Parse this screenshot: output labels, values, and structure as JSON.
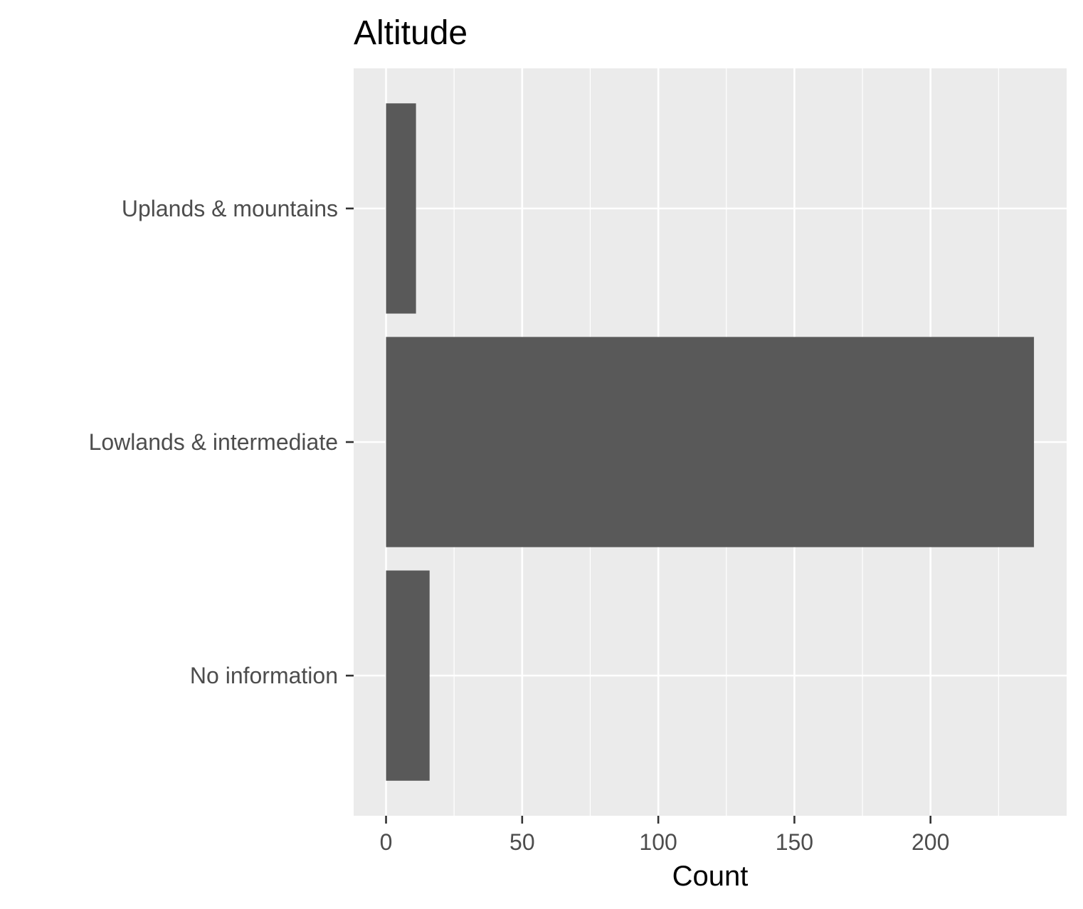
{
  "chart_data": {
    "type": "bar",
    "orientation": "horizontal",
    "title": "Altitude",
    "xlabel": "Count",
    "ylabel": "",
    "categories": [
      "Uplands & mountains",
      "Lowlands & intermediate",
      "No information"
    ],
    "values": [
      11,
      238,
      16
    ],
    "xlim": [
      -11.9,
      250
    ],
    "x_ticks": [
      0,
      50,
      100,
      150,
      200
    ],
    "x_tick_labels": [
      "0",
      "50",
      "100",
      "150",
      "200"
    ],
    "grid": true,
    "legend": "none",
    "colors": {
      "bar": "#595959",
      "panel_background": "#ebebeb",
      "grid_major": "#ffffff",
      "grid_minor": "#ffffff",
      "tick_text": "#4d4d4d",
      "tick_mark": "#333333",
      "title_text": "#000000"
    }
  }
}
